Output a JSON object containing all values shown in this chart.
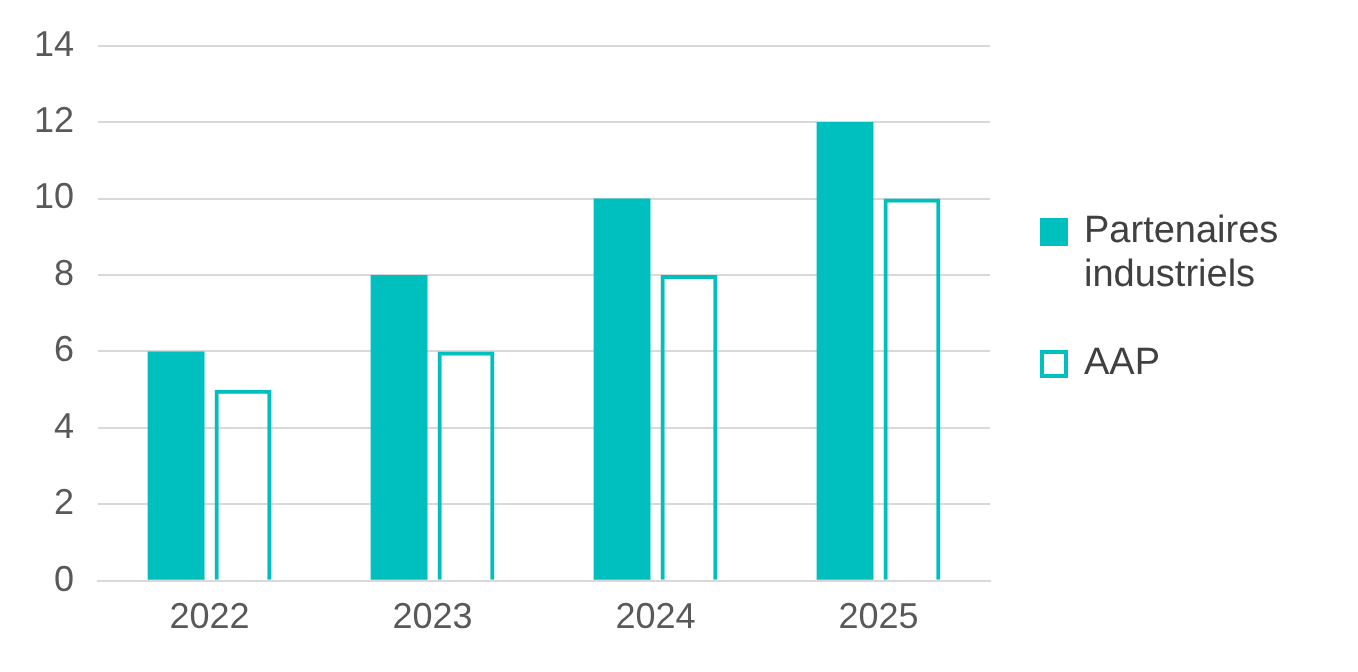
{
  "chart_data": {
    "type": "bar",
    "categories": [
      "2022",
      "2023",
      "2024",
      "2025"
    ],
    "series": [
      {
        "name": "Partenaires industriels",
        "color": "#00bfbf",
        "values": [
          6,
          8,
          10,
          12
        ]
      },
      {
        "name": "AAP",
        "color": "#00bfbf",
        "values": [
          5,
          6,
          8,
          10
        ]
      }
    ],
    "ylim": [
      0,
      14
    ],
    "yticks": [
      0,
      2,
      4,
      6,
      8,
      10,
      12,
      14
    ],
    "grid": "y",
    "legend": "right"
  }
}
